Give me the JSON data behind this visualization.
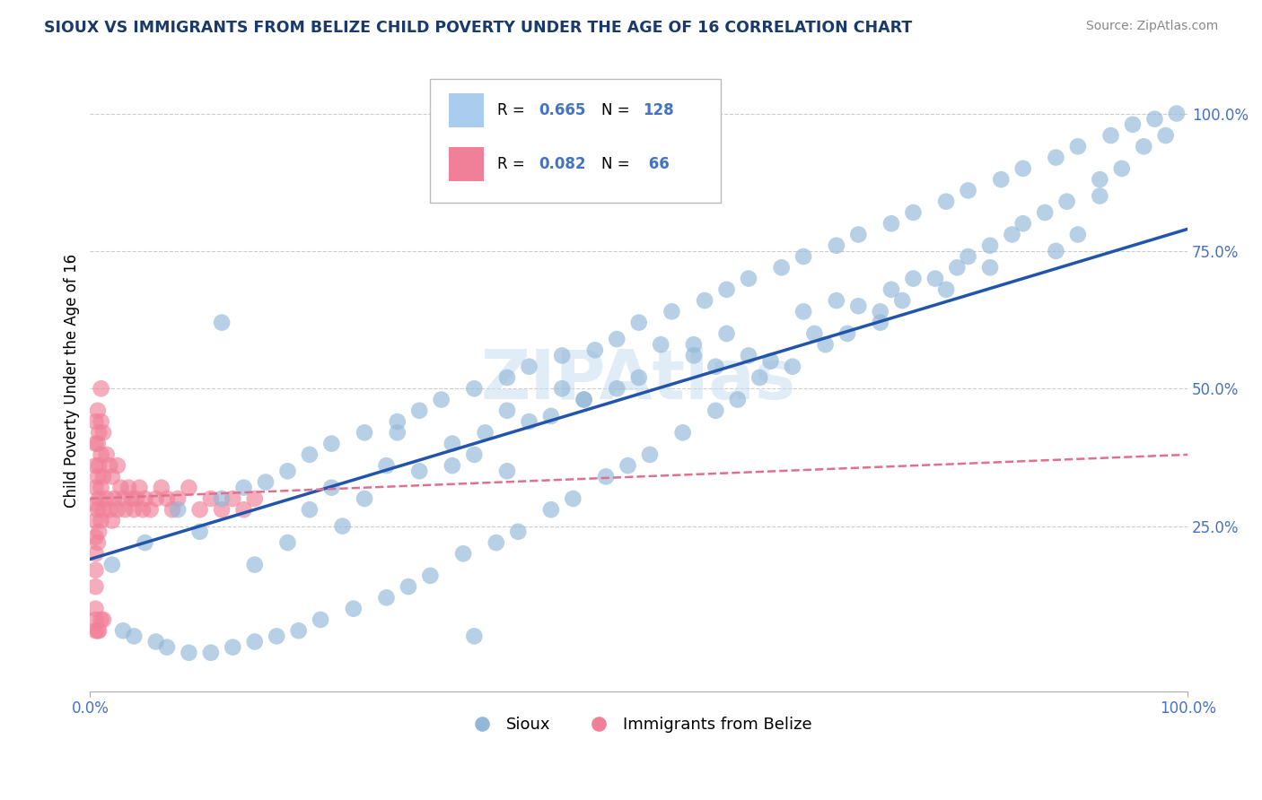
{
  "title": "SIOUX VS IMMIGRANTS FROM BELIZE CHILD POVERTY UNDER THE AGE OF 16 CORRELATION CHART",
  "source": "Source: ZipAtlas.com",
  "ylabel": "Child Poverty Under the Age of 16",
  "watermark": "ZIPAtlas",
  "legend_label1": "Sioux",
  "legend_label2": "Immigrants from Belize",
  "title_color": "#1a3a6b",
  "axis_color": "#4472c4",
  "blue_color": "#92b8d8",
  "pink_color": "#f08098",
  "blue_line_color": "#2255aa",
  "pink_line_color": "#e07090",
  "watermark_color": "#c8ddf0",
  "grid_color": "#cccccc",
  "xmin": 0.0,
  "xmax": 1.0,
  "ymin": -0.05,
  "ymax": 1.08,
  "sioux_x": [
    0.33,
    0.35,
    0.02,
    0.12,
    0.05,
    0.08,
    0.1,
    0.12,
    0.14,
    0.16,
    0.18,
    0.2,
    0.22,
    0.25,
    0.28,
    0.3,
    0.32,
    0.35,
    0.38,
    0.4,
    0.43,
    0.46,
    0.48,
    0.5,
    0.53,
    0.56,
    0.58,
    0.6,
    0.63,
    0.65,
    0.68,
    0.7,
    0.73,
    0.75,
    0.78,
    0.8,
    0.83,
    0.85,
    0.88,
    0.9,
    0.93,
    0.95,
    0.97,
    0.99,
    0.98,
    0.96,
    0.94,
    0.92,
    0.89,
    0.87,
    0.84,
    0.82,
    0.79,
    0.77,
    0.74,
    0.72,
    0.69,
    0.67,
    0.64,
    0.61,
    0.59,
    0.57,
    0.54,
    0.51,
    0.49,
    0.47,
    0.44,
    0.42,
    0.39,
    0.37,
    0.34,
    0.31,
    0.29,
    0.27,
    0.24,
    0.21,
    0.19,
    0.17,
    0.15,
    0.13,
    0.11,
    0.09,
    0.07,
    0.06,
    0.04,
    0.03,
    0.62,
    0.45,
    0.28,
    0.55,
    0.7,
    0.38,
    0.82,
    0.15,
    0.9,
    0.23,
    0.66,
    0.5,
    0.35,
    0.78,
    0.42,
    0.6,
    0.25,
    0.85,
    0.18,
    0.72,
    0.48,
    0.33,
    0.57,
    0.4,
    0.75,
    0.52,
    0.3,
    0.65,
    0.2,
    0.88,
    0.45,
    0.58,
    0.36,
    0.8,
    0.22,
    0.68,
    0.43,
    0.55,
    0.27,
    0.73,
    0.38,
    0.92
  ],
  "sioux_y": [
    0.36,
    0.05,
    0.18,
    0.62,
    0.22,
    0.28,
    0.24,
    0.3,
    0.32,
    0.33,
    0.35,
    0.38,
    0.4,
    0.42,
    0.44,
    0.46,
    0.48,
    0.5,
    0.52,
    0.54,
    0.56,
    0.57,
    0.59,
    0.62,
    0.64,
    0.66,
    0.68,
    0.7,
    0.72,
    0.74,
    0.76,
    0.78,
    0.8,
    0.82,
    0.84,
    0.86,
    0.88,
    0.9,
    0.92,
    0.94,
    0.96,
    0.98,
    0.99,
    1.0,
    0.96,
    0.94,
    0.9,
    0.88,
    0.84,
    0.82,
    0.78,
    0.76,
    0.72,
    0.7,
    0.66,
    0.64,
    0.6,
    0.58,
    0.54,
    0.52,
    0.48,
    0.46,
    0.42,
    0.38,
    0.36,
    0.34,
    0.3,
    0.28,
    0.24,
    0.22,
    0.2,
    0.16,
    0.14,
    0.12,
    0.1,
    0.08,
    0.06,
    0.05,
    0.04,
    0.03,
    0.02,
    0.02,
    0.03,
    0.04,
    0.05,
    0.06,
    0.55,
    0.48,
    0.42,
    0.58,
    0.65,
    0.35,
    0.72,
    0.18,
    0.78,
    0.25,
    0.6,
    0.52,
    0.38,
    0.68,
    0.45,
    0.56,
    0.3,
    0.8,
    0.22,
    0.62,
    0.5,
    0.4,
    0.54,
    0.44,
    0.7,
    0.58,
    0.35,
    0.64,
    0.28,
    0.75,
    0.48,
    0.6,
    0.42,
    0.74,
    0.32,
    0.66,
    0.5,
    0.56,
    0.36,
    0.68,
    0.46,
    0.85
  ],
  "belize_x": [
    0.005,
    0.005,
    0.005,
    0.005,
    0.005,
    0.005,
    0.005,
    0.005,
    0.005,
    0.005,
    0.005,
    0.007,
    0.007,
    0.007,
    0.007,
    0.007,
    0.008,
    0.008,
    0.008,
    0.008,
    0.01,
    0.01,
    0.01,
    0.01,
    0.01,
    0.012,
    0.012,
    0.012,
    0.015,
    0.015,
    0.018,
    0.018,
    0.02,
    0.02,
    0.022,
    0.025,
    0.025,
    0.028,
    0.03,
    0.032,
    0.035,
    0.038,
    0.04,
    0.042,
    0.045,
    0.048,
    0.05,
    0.055,
    0.06,
    0.065,
    0.07,
    0.075,
    0.08,
    0.09,
    0.1,
    0.11,
    0.12,
    0.13,
    0.14,
    0.15,
    0.005,
    0.005,
    0.007,
    0.008,
    0.01,
    0.012
  ],
  "belize_y": [
    0.1,
    0.14,
    0.17,
    0.2,
    0.23,
    0.26,
    0.29,
    0.32,
    0.36,
    0.4,
    0.44,
    0.22,
    0.28,
    0.34,
    0.4,
    0.46,
    0.24,
    0.3,
    0.36,
    0.42,
    0.26,
    0.32,
    0.38,
    0.44,
    0.5,
    0.28,
    0.34,
    0.42,
    0.3,
    0.38,
    0.28,
    0.36,
    0.26,
    0.34,
    0.3,
    0.28,
    0.36,
    0.32,
    0.3,
    0.28,
    0.32,
    0.3,
    0.28,
    0.3,
    0.32,
    0.28,
    0.3,
    0.28,
    0.3,
    0.32,
    0.3,
    0.28,
    0.3,
    0.32,
    0.28,
    0.3,
    0.28,
    0.3,
    0.28,
    0.3,
    0.06,
    0.08,
    0.06,
    0.06,
    0.08,
    0.08
  ],
  "blue_trend_x": [
    0.0,
    1.0
  ],
  "blue_trend_y": [
    0.19,
    0.79
  ],
  "pink_trend_x": [
    0.0,
    1.0
  ],
  "pink_trend_y": [
    0.3,
    0.38
  ]
}
